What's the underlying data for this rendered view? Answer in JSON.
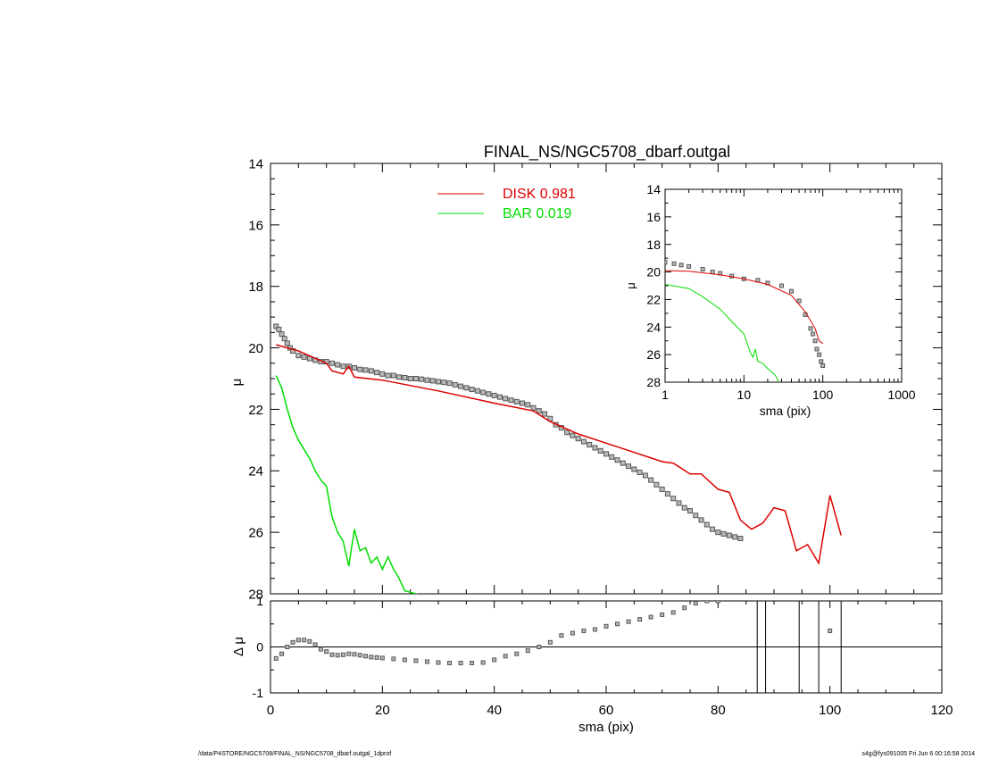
{
  "title": "FINAL_NS/NGC5708_dbarf.outgal",
  "footer_left": "/data/P4STORE/NGC5708/FINAL_NS/NGC5708_dbarf.outgal_1dprof",
  "footer_right": "s4g@fys091005  Fri Jun  6 00:16:58 2014",
  "colors": {
    "disk": "#dd0000",
    "bar": "#00dd00",
    "data": "#555555",
    "axes": "#000000"
  },
  "legend": [
    {
      "label": "DISK  0.981",
      "color": "#dd0000"
    },
    {
      "label": "BAR  0.019",
      "color": "#00dd00"
    }
  ],
  "chart_data": [
    {
      "type": "line",
      "panel": "main",
      "title": "FINAL_NS/NGC5708_dbarf.outgal",
      "xlabel": "",
      "ylabel": "μ",
      "xlim": [
        0,
        120
      ],
      "ylim": [
        28,
        14
      ],
      "y_inverted": true,
      "xticks": [
        0,
        20,
        40,
        60,
        80,
        100,
        120
      ],
      "yticks": [
        14,
        16,
        18,
        20,
        22,
        24,
        26,
        28
      ],
      "legend_position": "top-center",
      "series": [
        {
          "name": "DISK  0.981",
          "style": "line",
          "color": "#dd0000",
          "x": [
            1,
            5,
            10,
            11,
            13,
            14,
            15,
            20,
            30,
            40,
            47,
            50,
            55,
            60,
            65,
            70,
            72,
            75,
            77,
            80,
            82,
            84,
            86,
            88,
            90,
            92,
            94,
            96,
            98,
            100,
            102
          ],
          "y": [
            19.9,
            20.1,
            20.5,
            20.75,
            20.85,
            20.6,
            20.95,
            21.05,
            21.4,
            21.8,
            22.05,
            22.4,
            22.8,
            23.1,
            23.4,
            23.7,
            23.75,
            24.1,
            24.1,
            24.6,
            24.7,
            25.6,
            25.9,
            25.7,
            25.2,
            25.3,
            26.6,
            26.4,
            27.0,
            24.8,
            26.1
          ]
        },
        {
          "name": "BAR  0.019",
          "style": "line",
          "color": "#00dd00",
          "x": [
            1,
            2,
            3,
            4,
            5,
            6,
            7,
            8,
            9,
            10,
            11,
            12,
            13,
            14,
            15,
            16,
            17,
            18,
            19,
            20,
            21,
            22,
            23,
            24,
            25,
            26,
            27,
            28
          ],
          "y": [
            20.9,
            21.3,
            22.0,
            22.6,
            23.0,
            23.3,
            23.6,
            24.0,
            24.3,
            24.5,
            25.5,
            26.0,
            26.3,
            27.1,
            25.9,
            26.6,
            26.5,
            27.0,
            26.8,
            27.2,
            26.8,
            27.2,
            27.5,
            27.9,
            27.95,
            28.0,
            28.1,
            28.1
          ]
        },
        {
          "name": "",
          "style": "markers",
          "color": "#555555",
          "x": [
            1,
            1.5,
            2,
            2.5,
            3,
            3.5,
            4,
            5,
            6,
            7,
            8,
            9,
            10,
            11,
            12,
            13,
            14,
            15,
            16,
            17,
            18,
            19,
            20,
            21,
            22,
            23,
            24,
            25,
            26,
            27,
            28,
            29,
            30,
            31,
            32,
            33,
            34,
            35,
            36,
            37,
            38,
            39,
            40,
            41,
            42,
            43,
            44,
            45,
            46,
            47,
            48,
            49,
            50,
            51,
            52,
            53,
            54,
            55,
            56,
            57,
            58,
            59,
            60,
            61,
            62,
            63,
            64,
            65,
            66,
            67,
            68,
            69,
            70,
            71,
            72,
            73,
            74,
            75,
            76,
            77,
            78,
            79,
            80,
            81,
            82,
            83,
            84
          ],
          "y": [
            19.3,
            19.4,
            19.55,
            19.7,
            19.85,
            20.0,
            20.1,
            20.25,
            20.3,
            20.35,
            20.4,
            20.45,
            20.45,
            20.5,
            20.55,
            20.6,
            20.6,
            20.65,
            20.7,
            20.72,
            20.75,
            20.8,
            20.85,
            20.9,
            20.9,
            20.95,
            20.97,
            21.0,
            21.0,
            21.02,
            21.05,
            21.07,
            21.1,
            21.12,
            21.15,
            21.2,
            21.25,
            21.3,
            21.35,
            21.4,
            21.45,
            21.5,
            21.55,
            21.6,
            21.65,
            21.7,
            21.75,
            21.8,
            21.85,
            21.95,
            22.05,
            22.15,
            22.3,
            22.5,
            22.6,
            22.75,
            22.85,
            22.95,
            23.05,
            23.15,
            23.25,
            23.35,
            23.45,
            23.55,
            23.65,
            23.75,
            23.85,
            23.95,
            24.05,
            24.15,
            24.3,
            24.45,
            24.6,
            24.75,
            24.9,
            25.05,
            25.2,
            25.3,
            25.45,
            25.6,
            25.75,
            25.9,
            26.0,
            26.05,
            26.1,
            26.15,
            26.2
          ]
        }
      ]
    },
    {
      "type": "scatter",
      "panel": "residual",
      "title": "",
      "xlabel": "sma (pix)",
      "ylabel": "Δ μ",
      "xlim": [
        0,
        120
      ],
      "ylim": [
        -1,
        1
      ],
      "xticks": [
        0,
        20,
        40,
        60,
        80,
        100,
        120
      ],
      "yticks": [
        -1,
        0,
        1
      ],
      "series": [
        {
          "name": "",
          "style": "markers",
          "color": "#555555",
          "x": [
            1,
            2,
            3,
            4,
            5,
            6,
            7,
            8,
            9,
            10,
            11,
            12,
            13,
            14,
            15,
            16,
            17,
            18,
            19,
            20,
            22,
            24,
            26,
            28,
            30,
            32,
            34,
            36,
            38,
            40,
            42,
            44,
            46,
            48,
            50,
            52,
            54,
            56,
            58,
            60,
            62,
            64,
            66,
            68,
            70,
            72,
            74,
            76,
            78,
            80,
            100
          ],
          "y": [
            -0.25,
            -0.15,
            0.0,
            0.1,
            0.15,
            0.15,
            0.12,
            0.05,
            -0.05,
            -0.1,
            -0.17,
            -0.18,
            -0.17,
            -0.15,
            -0.16,
            -0.18,
            -0.2,
            -0.22,
            -0.23,
            -0.24,
            -0.26,
            -0.28,
            -0.3,
            -0.32,
            -0.34,
            -0.35,
            -0.35,
            -0.35,
            -0.34,
            -0.28,
            -0.2,
            -0.15,
            -0.08,
            0.0,
            0.1,
            0.25,
            0.3,
            0.35,
            0.38,
            0.45,
            0.5,
            0.55,
            0.6,
            0.65,
            0.7,
            0.75,
            0.85,
            0.95,
            1.0,
            1.0,
            0.35
          ]
        }
      ],
      "vertical_lines_x": [
        87,
        88.5,
        94.5,
        98,
        102
      ]
    },
    {
      "type": "line",
      "panel": "inset",
      "title": "",
      "xlabel": "sma (pix)",
      "ylabel": "μ",
      "x_log": true,
      "xlim": [
        1,
        1000
      ],
      "ylim": [
        28,
        14
      ],
      "y_inverted": true,
      "xticks": [
        1,
        10,
        100,
        1000
      ],
      "yticks": [
        14,
        16,
        18,
        20,
        22,
        24,
        26,
        28
      ],
      "series": [
        {
          "name": "",
          "style": "line",
          "color": "#dd0000",
          "x": [
            1,
            2,
            5,
            10,
            20,
            40,
            60,
            80,
            90,
            100
          ],
          "y": [
            19.9,
            19.95,
            20.2,
            20.5,
            20.9,
            21.7,
            22.9,
            24.1,
            25.0,
            25.2
          ]
        },
        {
          "name": "",
          "style": "line",
          "color": "#00dd00",
          "x": [
            1,
            2,
            3,
            5,
            7,
            10,
            12,
            13,
            14,
            15,
            17,
            20,
            25,
            28
          ],
          "y": [
            20.9,
            21.2,
            21.8,
            22.7,
            23.6,
            24.5,
            25.8,
            26.2,
            25.6,
            26.5,
            26.6,
            27.0,
            27.5,
            28.0
          ]
        },
        {
          "name": "",
          "style": "markers",
          "color": "#555555",
          "x": [
            1,
            1.3,
            1.6,
            2,
            3,
            4,
            5,
            7,
            10,
            15,
            20,
            30,
            40,
            50,
            60,
            70,
            75,
            80,
            84,
            90,
            95,
            100
          ],
          "y": [
            19.3,
            19.4,
            19.5,
            19.6,
            19.8,
            20.0,
            20.1,
            20.3,
            20.5,
            20.6,
            20.8,
            21.0,
            21.4,
            22.1,
            23.1,
            24.1,
            24.5,
            25.0,
            25.6,
            26.0,
            26.5,
            26.8
          ]
        }
      ]
    }
  ]
}
